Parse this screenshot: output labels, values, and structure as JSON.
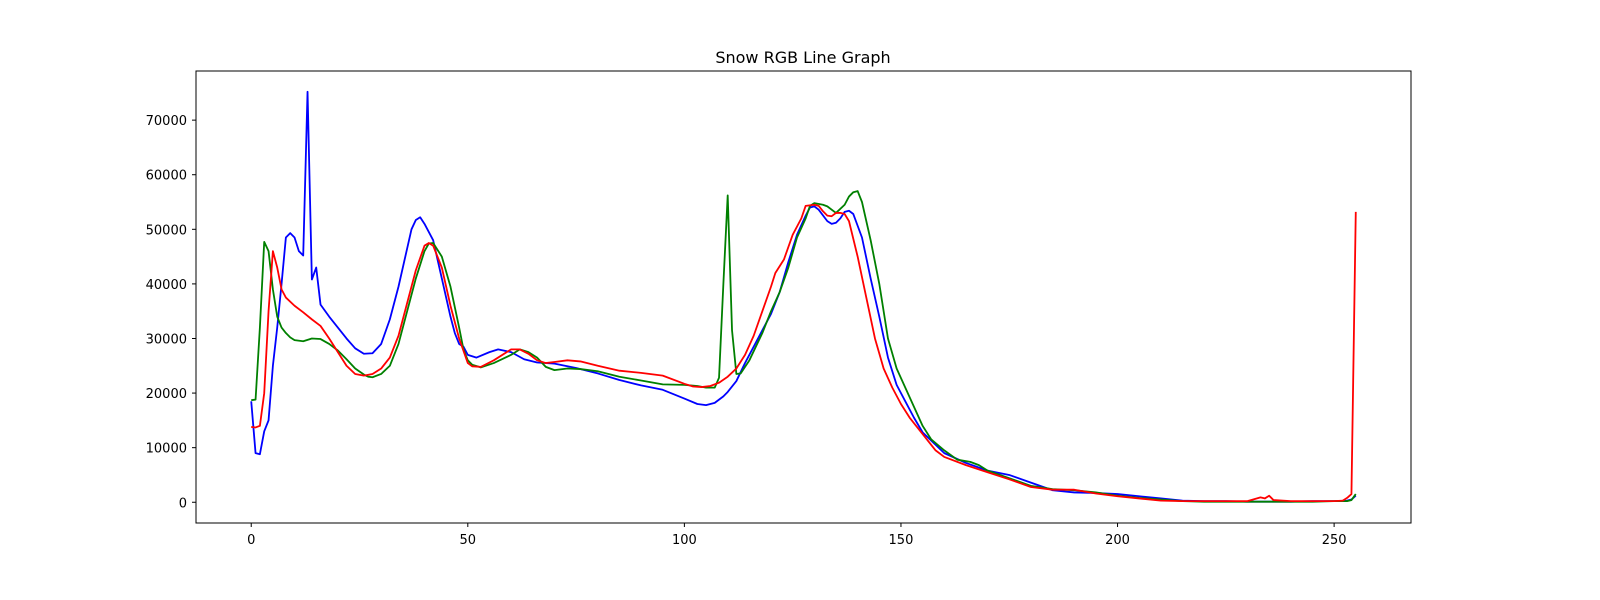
{
  "chart_data": {
    "type": "line",
    "title": "Snow RGB Line Graph",
    "xlabel": "",
    "ylabel": "",
    "xlim": [
      -12.75,
      267.75
    ],
    "ylim": [
      -3800,
      79000
    ],
    "xticks": [
      0,
      50,
      100,
      150,
      200,
      250
    ],
    "yticks": [
      0,
      10000,
      20000,
      30000,
      40000,
      50000,
      60000,
      70000
    ],
    "grid": false,
    "legend": "none",
    "series": [
      {
        "color": "#0000ff",
        "points": [
          [
            0,
            18500
          ],
          [
            1,
            9000
          ],
          [
            2,
            8800
          ],
          [
            3,
            13000
          ],
          [
            4,
            15000
          ],
          [
            5,
            25000
          ],
          [
            6,
            32000
          ],
          [
            7,
            40000
          ],
          [
            8,
            48500
          ],
          [
            9,
            49300
          ],
          [
            10,
            48500
          ],
          [
            11,
            46000
          ],
          [
            12,
            45200
          ],
          [
            13,
            75200
          ],
          [
            14,
            40800
          ],
          [
            15,
            43000
          ],
          [
            16,
            36200
          ],
          [
            18,
            34000
          ],
          [
            20,
            32000
          ],
          [
            22,
            30000
          ],
          [
            24,
            28200
          ],
          [
            26,
            27200
          ],
          [
            28,
            27300
          ],
          [
            30,
            29000
          ],
          [
            32,
            33500
          ],
          [
            34,
            39500
          ],
          [
            36,
            46500
          ],
          [
            37,
            50000
          ],
          [
            38,
            51700
          ],
          [
            39,
            52200
          ],
          [
            40,
            51000
          ],
          [
            42,
            48000
          ],
          [
            44,
            41000
          ],
          [
            46,
            34000
          ],
          [
            47,
            31000
          ],
          [
            48,
            29000
          ],
          [
            49,
            28500
          ],
          [
            50,
            27000
          ],
          [
            52,
            26500
          ],
          [
            55,
            27500
          ],
          [
            57,
            28000
          ],
          [
            60,
            27500
          ],
          [
            63,
            26200
          ],
          [
            66,
            25600
          ],
          [
            70,
            25400
          ],
          [
            75,
            24600
          ],
          [
            80,
            23600
          ],
          [
            85,
            22400
          ],
          [
            90,
            21400
          ],
          [
            95,
            20600
          ],
          [
            100,
            19000
          ],
          [
            103,
            18000
          ],
          [
            105,
            17800
          ],
          [
            107,
            18200
          ],
          [
            109,
            19400
          ],
          [
            110,
            20200
          ],
          [
            112,
            22200
          ],
          [
            114,
            25500
          ],
          [
            116,
            28500
          ],
          [
            118,
            31500
          ],
          [
            120,
            34500
          ],
          [
            122,
            38500
          ],
          [
            124,
            44000
          ],
          [
            126,
            49000
          ],
          [
            128,
            52500
          ],
          [
            129,
            54000
          ],
          [
            130,
            54200
          ],
          [
            131,
            53600
          ],
          [
            133,
            51500
          ],
          [
            134,
            51000
          ],
          [
            135,
            51200
          ],
          [
            136,
            52000
          ],
          [
            137,
            53200
          ],
          [
            138,
            53400
          ],
          [
            139,
            52800
          ],
          [
            141,
            48500
          ],
          [
            143,
            41000
          ],
          [
            145,
            34000
          ],
          [
            147,
            26500
          ],
          [
            149,
            21500
          ],
          [
            151,
            18500
          ],
          [
            153,
            15500
          ],
          [
            155,
            12800
          ],
          [
            160,
            9000
          ],
          [
            165,
            7200
          ],
          [
            170,
            5800
          ],
          [
            175,
            5000
          ],
          [
            180,
            3600
          ],
          [
            185,
            2200
          ],
          [
            190,
            1800
          ],
          [
            195,
            1700
          ],
          [
            200,
            1500
          ],
          [
            205,
            1100
          ],
          [
            210,
            700
          ],
          [
            215,
            300
          ],
          [
            220,
            200
          ],
          [
            225,
            200
          ],
          [
            230,
            100
          ],
          [
            235,
            100
          ],
          [
            240,
            100
          ],
          [
            245,
            200
          ],
          [
            250,
            200
          ],
          [
            253,
            300
          ],
          [
            254,
            500
          ],
          [
            255,
            1200
          ]
        ]
      },
      {
        "color": "#008000",
        "points": [
          [
            0,
            18700
          ],
          [
            1,
            18800
          ],
          [
            2,
            32000
          ],
          [
            3,
            47700
          ],
          [
            4,
            46000
          ],
          [
            5,
            39000
          ],
          [
            6,
            34000
          ],
          [
            7,
            32000
          ],
          [
            8,
            31000
          ],
          [
            9,
            30200
          ],
          [
            10,
            29700
          ],
          [
            12,
            29500
          ],
          [
            14,
            30000
          ],
          [
            16,
            29900
          ],
          [
            18,
            29000
          ],
          [
            20,
            27800
          ],
          [
            22,
            26200
          ],
          [
            24,
            24500
          ],
          [
            26,
            23400
          ],
          [
            27,
            23000
          ],
          [
            28,
            22900
          ],
          [
            30,
            23500
          ],
          [
            32,
            25000
          ],
          [
            34,
            29000
          ],
          [
            36,
            35000
          ],
          [
            38,
            41000
          ],
          [
            40,
            46000
          ],
          [
            41,
            47400
          ],
          [
            42,
            47500
          ],
          [
            44,
            45000
          ],
          [
            46,
            39500
          ],
          [
            48,
            32000
          ],
          [
            49,
            28000
          ],
          [
            50,
            26000
          ],
          [
            51,
            25200
          ],
          [
            53,
            24700
          ],
          [
            56,
            25500
          ],
          [
            60,
            27000
          ],
          [
            62,
            28000
          ],
          [
            64,
            27500
          ],
          [
            66,
            26500
          ],
          [
            68,
            24800
          ],
          [
            70,
            24200
          ],
          [
            73,
            24500
          ],
          [
            76,
            24400
          ],
          [
            80,
            24000
          ],
          [
            85,
            23000
          ],
          [
            90,
            22300
          ],
          [
            95,
            21600
          ],
          [
            100,
            21500
          ],
          [
            103,
            21300
          ],
          [
            105,
            21000
          ],
          [
            107,
            21000
          ],
          [
            108,
            22800
          ],
          [
            109,
            40000
          ],
          [
            110,
            56200
          ],
          [
            111,
            31500
          ],
          [
            112,
            23500
          ],
          [
            113,
            23600
          ],
          [
            115,
            26000
          ],
          [
            118,
            31000
          ],
          [
            120,
            35000
          ],
          [
            122,
            38500
          ],
          [
            124,
            43000
          ],
          [
            126,
            48500
          ],
          [
            128,
            52000
          ],
          [
            129,
            54300
          ],
          [
            130,
            54800
          ],
          [
            132,
            54500
          ],
          [
            133,
            54200
          ],
          [
            135,
            53000
          ],
          [
            137,
            54500
          ],
          [
            138,
            56000
          ],
          [
            139,
            56800
          ],
          [
            140,
            57000
          ],
          [
            141,
            55000
          ],
          [
            143,
            48000
          ],
          [
            145,
            40000
          ],
          [
            147,
            30000
          ],
          [
            149,
            24500
          ],
          [
            151,
            21000
          ],
          [
            153,
            17500
          ],
          [
            155,
            14000
          ],
          [
            157,
            11500
          ],
          [
            160,
            9500
          ],
          [
            163,
            7800
          ],
          [
            166,
            7400
          ],
          [
            168,
            6800
          ],
          [
            170,
            5800
          ],
          [
            175,
            4400
          ],
          [
            180,
            3000
          ],
          [
            185,
            2400
          ],
          [
            190,
            2200
          ],
          [
            195,
            1800
          ],
          [
            200,
            1200
          ],
          [
            205,
            800
          ],
          [
            210,
            500
          ],
          [
            215,
            200
          ],
          [
            220,
            100
          ],
          [
            225,
            100
          ],
          [
            230,
            100
          ],
          [
            235,
            100
          ],
          [
            240,
            100
          ],
          [
            245,
            100
          ],
          [
            250,
            200
          ],
          [
            253,
            200
          ],
          [
            254,
            400
          ],
          [
            255,
            1500
          ]
        ]
      },
      {
        "color": "#ff0000",
        "points": [
          [
            0,
            13800
          ],
          [
            1,
            13700
          ],
          [
            2,
            14000
          ],
          [
            3,
            20000
          ],
          [
            4,
            35000
          ],
          [
            5,
            46000
          ],
          [
            6,
            43000
          ],
          [
            7,
            39000
          ],
          [
            8,
            37500
          ],
          [
            10,
            36000
          ],
          [
            12,
            34800
          ],
          [
            14,
            33500
          ],
          [
            16,
            32300
          ],
          [
            18,
            30000
          ],
          [
            20,
            27500
          ],
          [
            22,
            25000
          ],
          [
            24,
            23500
          ],
          [
            26,
            23200
          ],
          [
            28,
            23500
          ],
          [
            30,
            24500
          ],
          [
            32,
            26500
          ],
          [
            34,
            30500
          ],
          [
            36,
            36500
          ],
          [
            38,
            42500
          ],
          [
            40,
            47000
          ],
          [
            41,
            47500
          ],
          [
            42,
            47000
          ],
          [
            44,
            43000
          ],
          [
            46,
            36000
          ],
          [
            48,
            30000
          ],
          [
            50,
            25500
          ],
          [
            51,
            24900
          ],
          [
            53,
            24800
          ],
          [
            56,
            26000
          ],
          [
            60,
            28000
          ],
          [
            62,
            28000
          ],
          [
            64,
            27200
          ],
          [
            66,
            26000
          ],
          [
            68,
            25500
          ],
          [
            70,
            25700
          ],
          [
            73,
            26000
          ],
          [
            76,
            25800
          ],
          [
            80,
            25000
          ],
          [
            85,
            24100
          ],
          [
            90,
            23700
          ],
          [
            95,
            23200
          ],
          [
            100,
            21700
          ],
          [
            102,
            21200
          ],
          [
            104,
            21100
          ],
          [
            106,
            21300
          ],
          [
            108,
            21900
          ],
          [
            110,
            23000
          ],
          [
            112,
            24500
          ],
          [
            114,
            27000
          ],
          [
            116,
            30500
          ],
          [
            118,
            35000
          ],
          [
            120,
            39500
          ],
          [
            121,
            42000
          ],
          [
            123,
            44500
          ],
          [
            125,
            49000
          ],
          [
            127,
            52000
          ],
          [
            128,
            54300
          ],
          [
            130,
            54500
          ],
          [
            131,
            54300
          ],
          [
            132,
            53300
          ],
          [
            133,
            52500
          ],
          [
            134,
            52400
          ],
          [
            135,
            53000
          ],
          [
            136,
            53000
          ],
          [
            137,
            52800
          ],
          [
            138,
            51500
          ],
          [
            140,
            45000
          ],
          [
            142,
            37500
          ],
          [
            144,
            30000
          ],
          [
            146,
            24500
          ],
          [
            148,
            21000
          ],
          [
            150,
            18000
          ],
          [
            152,
            15500
          ],
          [
            155,
            12500
          ],
          [
            158,
            9500
          ],
          [
            160,
            8300
          ],
          [
            165,
            6800
          ],
          [
            170,
            5500
          ],
          [
            175,
            4200
          ],
          [
            180,
            2800
          ],
          [
            185,
            2300
          ],
          [
            190,
            2300
          ],
          [
            195,
            1600
          ],
          [
            200,
            1100
          ],
          [
            205,
            700
          ],
          [
            210,
            300
          ],
          [
            215,
            200
          ],
          [
            220,
            200
          ],
          [
            225,
            200
          ],
          [
            230,
            200
          ],
          [
            233,
            900
          ],
          [
            234,
            700
          ],
          [
            235,
            1200
          ],
          [
            236,
            400
          ],
          [
            240,
            200
          ],
          [
            245,
            200
          ],
          [
            250,
            200
          ],
          [
            252,
            300
          ],
          [
            253,
            800
          ],
          [
            254,
            1500
          ],
          [
            255,
            53200
          ]
        ]
      }
    ]
  }
}
